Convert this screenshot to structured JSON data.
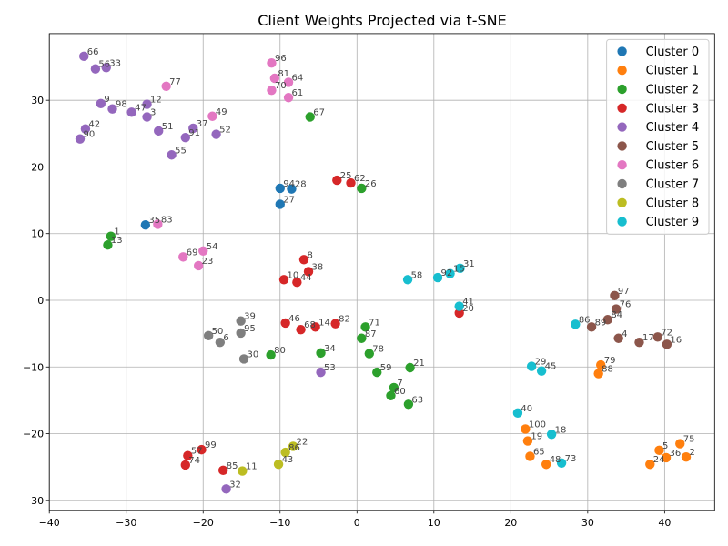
{
  "chart_data": {
    "type": "scatter",
    "title": "Client Weights Projected via t-SNE",
    "xlabel": "",
    "ylabel": "",
    "xlim": [
      -40,
      46.5
    ],
    "ylim": [
      -31.5,
      40
    ],
    "xticks": [
      -40,
      -30,
      -20,
      -10,
      0,
      10,
      20,
      30,
      40
    ],
    "yticks": [
      -30,
      -20,
      -10,
      0,
      10,
      20,
      30
    ],
    "grid": true,
    "legend_position": "top-right",
    "series": [
      {
        "name": "Cluster 0",
        "color": "#1f77b4",
        "points": [
          {
            "x": -10.0,
            "y": 16.8,
            "label": "94"
          },
          {
            "x": -8.5,
            "y": 16.7,
            "label": "28"
          },
          {
            "x": -10.0,
            "y": 14.4,
            "label": "27"
          },
          {
            "x": -27.5,
            "y": 11.3,
            "label": "35"
          }
        ]
      },
      {
        "name": "Cluster 1",
        "color": "#ff7f0e",
        "points": [
          {
            "x": 21.9,
            "y": -19.3,
            "label": "100"
          },
          {
            "x": 22.2,
            "y": -21.1,
            "label": "19"
          },
          {
            "x": 22.5,
            "y": -23.4,
            "label": "65"
          },
          {
            "x": 24.6,
            "y": -24.6,
            "label": "48"
          },
          {
            "x": 31.7,
            "y": -9.7,
            "label": "79"
          },
          {
            "x": 31.4,
            "y": -11.0,
            "label": "88"
          },
          {
            "x": 42.0,
            "y": -21.5,
            "label": "75"
          },
          {
            "x": 39.3,
            "y": -22.5,
            "label": "5"
          },
          {
            "x": 40.2,
            "y": -23.6,
            "label": "36"
          },
          {
            "x": 42.8,
            "y": -23.5,
            "label": "2"
          },
          {
            "x": 38.1,
            "y": -24.6,
            "label": "24"
          }
        ]
      },
      {
        "name": "Cluster 2",
        "color": "#2ca02c",
        "points": [
          {
            "x": -32.0,
            "y": 9.6,
            "label": "1"
          },
          {
            "x": -32.4,
            "y": 8.3,
            "label": "13"
          },
          {
            "x": -6.1,
            "y": 27.5,
            "label": "67"
          },
          {
            "x": 0.6,
            "y": 16.8,
            "label": "26"
          },
          {
            "x": 1.1,
            "y": -4.0,
            "label": "71"
          },
          {
            "x": 0.6,
            "y": -5.7,
            "label": "87"
          },
          {
            "x": 1.6,
            "y": -8.0,
            "label": "78"
          },
          {
            "x": -4.7,
            "y": -7.9,
            "label": "34"
          },
          {
            "x": -11.2,
            "y": -8.2,
            "label": "80"
          },
          {
            "x": 2.6,
            "y": -10.8,
            "label": "59"
          },
          {
            "x": 6.9,
            "y": -10.1,
            "label": "21"
          },
          {
            "x": 4.8,
            "y": -13.1,
            "label": "7"
          },
          {
            "x": 4.4,
            "y": -14.3,
            "label": "60"
          },
          {
            "x": 6.7,
            "y": -15.6,
            "label": "63"
          }
        ]
      },
      {
        "name": "Cluster 3",
        "color": "#d62728",
        "points": [
          {
            "x": -2.6,
            "y": 18.0,
            "label": "25"
          },
          {
            "x": -0.8,
            "y": 17.6,
            "label": "62"
          },
          {
            "x": -6.9,
            "y": 6.1,
            "label": "8"
          },
          {
            "x": -6.3,
            "y": 4.3,
            "label": "38"
          },
          {
            "x": -9.5,
            "y": 3.1,
            "label": "10"
          },
          {
            "x": -7.8,
            "y": 2.7,
            "label": "44"
          },
          {
            "x": 13.3,
            "y": -1.9,
            "label": "20"
          },
          {
            "x": -9.3,
            "y": -3.4,
            "label": "46"
          },
          {
            "x": -7.3,
            "y": -4.4,
            "label": "68"
          },
          {
            "x": -5.4,
            "y": -4.0,
            "label": "14"
          },
          {
            "x": -2.8,
            "y": -3.5,
            "label": "82"
          },
          {
            "x": -20.2,
            "y": -22.4,
            "label": "99"
          },
          {
            "x": -22.0,
            "y": -23.3,
            "label": "57"
          },
          {
            "x": -22.3,
            "y": -24.7,
            "label": "74"
          },
          {
            "x": -17.4,
            "y": -25.5,
            "label": "85"
          }
        ]
      },
      {
        "name": "Cluster 4",
        "color": "#9467bd",
        "points": [
          {
            "x": -35.5,
            "y": 36.6,
            "label": "66"
          },
          {
            "x": -34.0,
            "y": 34.7,
            "label": "56"
          },
          {
            "x": -32.6,
            "y": 34.9,
            "label": "33"
          },
          {
            "x": -33.3,
            "y": 29.5,
            "label": "9"
          },
          {
            "x": -31.8,
            "y": 28.7,
            "label": "98"
          },
          {
            "x": -29.3,
            "y": 28.2,
            "label": "47"
          },
          {
            "x": -27.3,
            "y": 29.4,
            "label": "12"
          },
          {
            "x": -27.3,
            "y": 27.5,
            "label": "3"
          },
          {
            "x": -35.3,
            "y": 25.7,
            "label": "42"
          },
          {
            "x": -25.8,
            "y": 25.4,
            "label": "51"
          },
          {
            "x": -21.3,
            "y": 25.8,
            "label": "37"
          },
          {
            "x": -22.3,
            "y": 24.4,
            "label": "91"
          },
          {
            "x": -18.3,
            "y": 24.9,
            "label": "52"
          },
          {
            "x": -36.0,
            "y": 24.2,
            "label": "90"
          },
          {
            "x": -24.1,
            "y": 21.8,
            "label": "55"
          },
          {
            "x": -4.7,
            "y": -10.8,
            "label": "53"
          },
          {
            "x": -17.0,
            "y": -28.3,
            "label": "32"
          }
        ]
      },
      {
        "name": "Cluster 5",
        "color": "#8c564b",
        "points": [
          {
            "x": 33.5,
            "y": 0.7,
            "label": "97"
          },
          {
            "x": 33.7,
            "y": -1.3,
            "label": "76"
          },
          {
            "x": 32.6,
            "y": -2.9,
            "label": "84"
          },
          {
            "x": 30.5,
            "y": -4.0,
            "label": "89"
          },
          {
            "x": 34.0,
            "y": -5.7,
            "label": "4"
          },
          {
            "x": 36.7,
            "y": -6.3,
            "label": "17"
          },
          {
            "x": 39.1,
            "y": -5.5,
            "label": "72"
          },
          {
            "x": 40.3,
            "y": -6.6,
            "label": "16"
          }
        ]
      },
      {
        "name": "Cluster 6",
        "color": "#e377c2",
        "points": [
          {
            "x": -11.1,
            "y": 35.6,
            "label": "96"
          },
          {
            "x": -10.7,
            "y": 33.3,
            "label": "81"
          },
          {
            "x": -8.9,
            "y": 32.7,
            "label": "64"
          },
          {
            "x": -11.1,
            "y": 31.5,
            "label": "70"
          },
          {
            "x": -8.9,
            "y": 30.4,
            "label": "61"
          },
          {
            "x": -24.8,
            "y": 32.1,
            "label": "77"
          },
          {
            "x": -18.8,
            "y": 27.6,
            "label": "49"
          },
          {
            "x": -25.9,
            "y": 11.4,
            "label": "83"
          },
          {
            "x": -20.0,
            "y": 7.4,
            "label": "54"
          },
          {
            "x": -22.6,
            "y": 6.5,
            "label": "69"
          },
          {
            "x": -20.6,
            "y": 5.2,
            "label": "23"
          }
        ]
      },
      {
        "name": "Cluster 7",
        "color": "#7f7f7f",
        "points": [
          {
            "x": -15.1,
            "y": -3.1,
            "label": "39"
          },
          {
            "x": -15.1,
            "y": -4.9,
            "label": "95"
          },
          {
            "x": -19.3,
            "y": -5.3,
            "label": "50"
          },
          {
            "x": -17.8,
            "y": -6.3,
            "label": "6"
          },
          {
            "x": -14.7,
            "y": -8.8,
            "label": "30"
          }
        ]
      },
      {
        "name": "Cluster 8",
        "color": "#bcbd22",
        "points": [
          {
            "x": -8.3,
            "y": -21.9,
            "label": "22"
          },
          {
            "x": -9.3,
            "y": -22.8,
            "label": "86"
          },
          {
            "x": -10.2,
            "y": -24.6,
            "label": "43"
          },
          {
            "x": -14.9,
            "y": -25.6,
            "label": "11"
          }
        ]
      },
      {
        "name": "Cluster 9",
        "color": "#17becf",
        "points": [
          {
            "x": 13.4,
            "y": 4.8,
            "label": "31"
          },
          {
            "x": 12.1,
            "y": 4.0,
            "label": "15"
          },
          {
            "x": 10.5,
            "y": 3.4,
            "label": "92"
          },
          {
            "x": 6.6,
            "y": 3.1,
            "label": "58"
          },
          {
            "x": 13.3,
            "y": -0.9,
            "label": "41"
          },
          {
            "x": 28.4,
            "y": -3.6,
            "label": "86"
          },
          {
            "x": 22.7,
            "y": -9.9,
            "label": "29"
          },
          {
            "x": 24.0,
            "y": -10.6,
            "label": "45"
          },
          {
            "x": 20.9,
            "y": -16.9,
            "label": "40"
          },
          {
            "x": 25.3,
            "y": -20.1,
            "label": "18"
          },
          {
            "x": 26.6,
            "y": -24.4,
            "label": "73"
          }
        ]
      }
    ]
  }
}
